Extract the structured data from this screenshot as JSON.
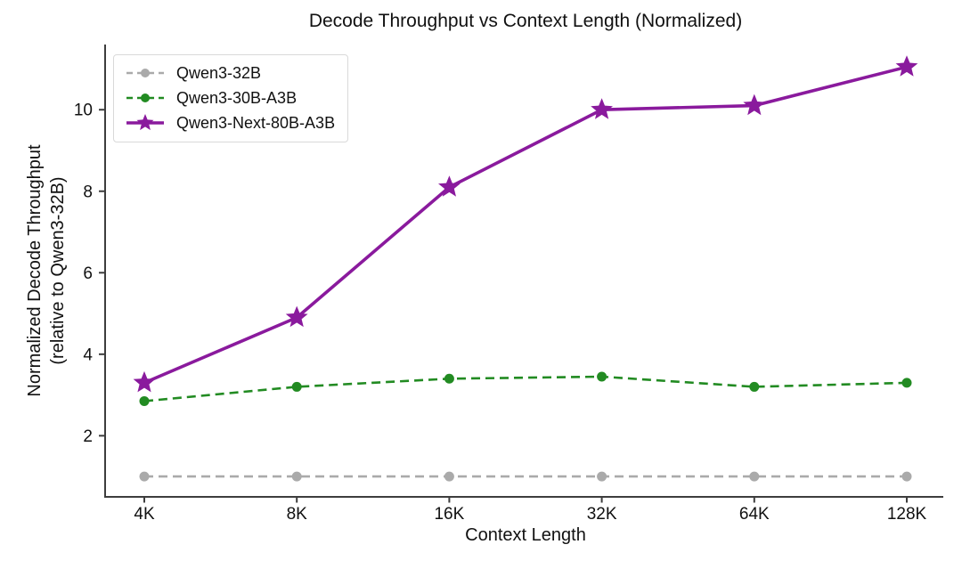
{
  "chart_data": {
    "type": "line",
    "title": "Decode Throughput vs Context Length (Normalized)",
    "xlabel": "Context Length",
    "ylabel": "Normalized Decode Throughput (relative to Qwen3-32B)",
    "ylabel_line1": "Normalized Decode Throughput",
    "ylabel_line2": "(relative to Qwen3-32B)",
    "categories": [
      "4K",
      "8K",
      "16K",
      "32K",
      "64K",
      "128K"
    ],
    "yticks": [
      2,
      4,
      6,
      8,
      10
    ],
    "ylim": [
      0.5,
      11.6
    ],
    "grid": false,
    "legend_position": "upper-left",
    "background_color": "#ffffff",
    "axis_color": "#3d3d3d",
    "text_color": "#111111",
    "series": [
      {
        "name": "Qwen3-32B",
        "color": "#aaaaaa",
        "line_style": "dashed",
        "marker": "circle",
        "values": [
          1.0,
          1.0,
          1.0,
          1.0,
          1.0,
          1.0
        ]
      },
      {
        "name": "Qwen3-30B-A3B",
        "color": "#228B22",
        "line_style": "dashed",
        "marker": "circle",
        "values": [
          2.85,
          3.2,
          3.4,
          3.45,
          3.2,
          3.3
        ]
      },
      {
        "name": "Qwen3-Next-80B-A3B",
        "color": "#8A1A9D",
        "line_style": "solid",
        "marker": "star",
        "values": [
          3.3,
          4.9,
          8.1,
          10.0,
          10.1,
          11.05
        ]
      }
    ]
  }
}
